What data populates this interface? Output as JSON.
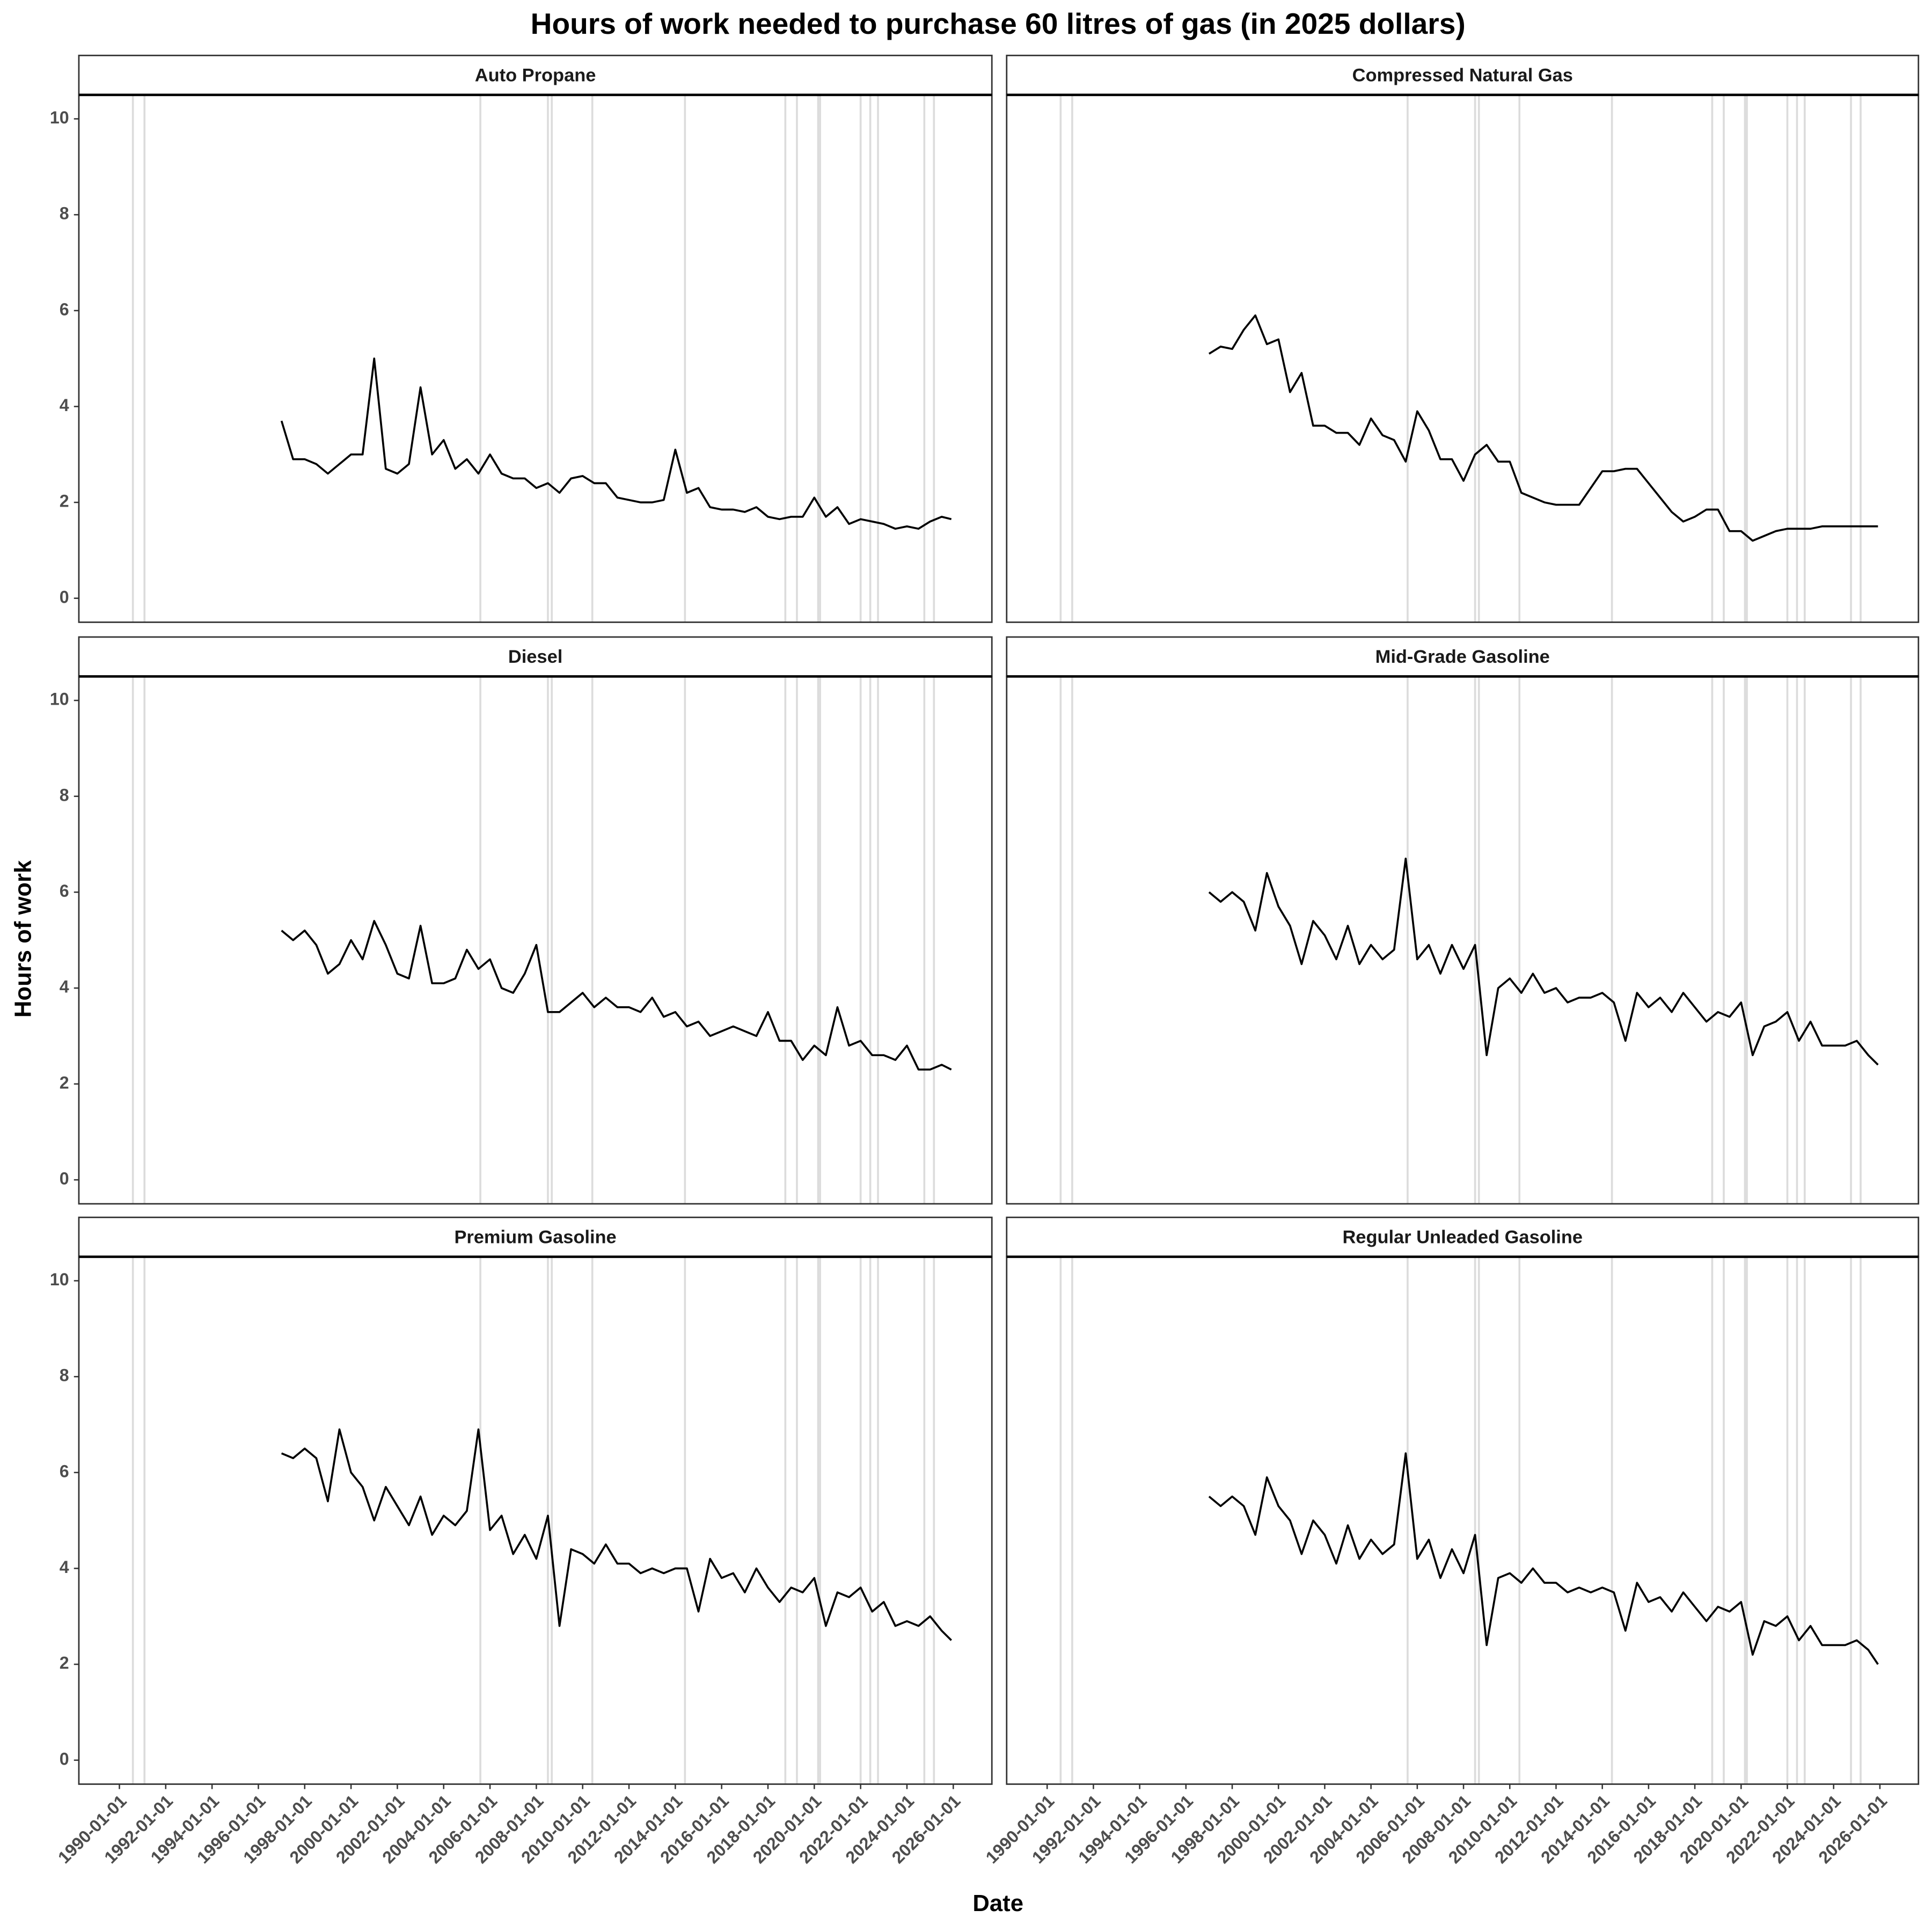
{
  "title": "Hours of work needed to purchase 60 litres of gas (in 2025 dollars)",
  "x_label": "Date",
  "y_label": "Hours of work",
  "reference_lines": [
    "1990-08-01",
    "1991-02-01",
    "2005-08-01",
    "2008-07-01",
    "2008-09-01",
    "2010-06-01",
    "2014-06-01",
    "2018-10-01",
    "2019-04-01",
    "2020-03-01",
    "2020-04-01",
    "2022-01-01",
    "2022-06-01",
    "2022-10-01",
    "2024-10-01",
    "2025-03-01"
  ],
  "chart_data": [
    {
      "type": "line",
      "title": "Auto Propane",
      "color": "#000000",
      "xlim": [
        "1988-04-01",
        "2027-09-01"
      ],
      "ylim": [
        -0.5,
        10.5
      ],
      "yticks": [
        0,
        2,
        4,
        6,
        8,
        10
      ],
      "x": [
        "1997-01-01",
        "1997-07-01",
        "1998-01-01",
        "1998-07-01",
        "1999-01-01",
        "1999-07-01",
        "2000-01-01",
        "2000-07-01",
        "2001-01-01",
        "2001-07-01",
        "2002-01-01",
        "2002-07-01",
        "2003-01-01",
        "2003-07-01",
        "2004-01-01",
        "2004-07-01",
        "2005-01-01",
        "2005-07-01",
        "2006-01-01",
        "2006-07-01",
        "2007-01-01",
        "2007-07-01",
        "2008-01-01",
        "2008-07-01",
        "2009-01-01",
        "2009-07-01",
        "2010-01-01",
        "2010-07-01",
        "2011-01-01",
        "2011-07-01",
        "2012-01-01",
        "2012-07-01",
        "2013-01-01",
        "2013-07-01",
        "2014-01-01",
        "2014-07-01",
        "2015-01-01",
        "2015-07-01",
        "2016-01-01",
        "2016-07-01",
        "2017-01-01",
        "2017-07-01",
        "2018-01-01",
        "2018-07-01",
        "2019-01-01",
        "2019-07-01",
        "2020-01-01",
        "2020-07-01",
        "2021-01-01",
        "2021-07-01",
        "2022-01-01",
        "2022-07-01",
        "2023-01-01",
        "2023-07-01",
        "2024-01-01",
        "2024-07-01",
        "2025-01-01",
        "2025-07-01",
        "2025-12-01"
      ],
      "values": [
        3.7,
        2.9,
        2.9,
        2.8,
        2.6,
        2.8,
        3.0,
        3.0,
        5.0,
        2.7,
        2.6,
        2.8,
        4.4,
        3.0,
        3.3,
        2.7,
        2.9,
        2.6,
        3.0,
        2.6,
        2.5,
        2.5,
        2.3,
        2.4,
        2.2,
        2.5,
        2.55,
        2.4,
        2.4,
        2.1,
        2.05,
        2.0,
        2.0,
        2.05,
        3.1,
        2.2,
        2.3,
        1.9,
        1.85,
        1.85,
        1.8,
        1.9,
        1.7,
        1.65,
        1.7,
        1.7,
        2.1,
        1.7,
        1.9,
        1.55,
        1.65,
        1.6,
        1.55,
        1.45,
        1.5,
        1.45,
        1.6,
        1.7,
        1.65
      ]
    },
    {
      "type": "line",
      "title": "Compressed Natural Gas",
      "color": "#000000",
      "xlim": [
        "1988-04-01",
        "2027-09-01"
      ],
      "ylim": [
        -0.5,
        10.5
      ],
      "x": [
        "1997-01-01",
        "1997-07-01",
        "1998-01-01",
        "1998-07-01",
        "1999-01-01",
        "1999-07-01",
        "2000-01-01",
        "2000-07-01",
        "2001-01-01",
        "2001-07-01",
        "2002-01-01",
        "2002-07-01",
        "2003-01-01",
        "2003-07-01",
        "2004-01-01",
        "2004-07-01",
        "2005-01-01",
        "2005-07-01",
        "2006-01-01",
        "2006-07-01",
        "2007-01-01",
        "2007-07-01",
        "2008-01-01",
        "2008-07-01",
        "2009-01-01",
        "2009-07-01",
        "2010-01-01",
        "2010-07-01",
        "2011-01-01",
        "2011-07-01",
        "2012-01-01",
        "2012-07-01",
        "2013-01-01",
        "2013-07-01",
        "2014-01-01",
        "2014-07-01",
        "2015-01-01",
        "2015-07-01",
        "2016-01-01",
        "2016-07-01",
        "2017-01-01",
        "2017-07-01",
        "2018-01-01",
        "2018-07-01",
        "2019-01-01",
        "2019-07-01",
        "2020-01-01",
        "2020-07-01",
        "2021-01-01",
        "2021-07-01",
        "2022-01-01",
        "2022-07-01",
        "2023-01-01",
        "2023-07-01",
        "2024-01-01",
        "2024-07-01",
        "2025-01-01",
        "2025-07-01",
        "2025-12-01"
      ],
      "values": [
        5.1,
        5.25,
        5.2,
        5.6,
        5.9,
        5.3,
        5.4,
        4.3,
        4.7,
        3.6,
        3.6,
        3.45,
        3.45,
        3.2,
        3.75,
        3.4,
        3.3,
        2.85,
        3.9,
        3.5,
        2.9,
        2.9,
        2.45,
        3.0,
        3.2,
        2.85,
        2.85,
        2.2,
        2.1,
        2.0,
        1.95,
        1.95,
        1.95,
        2.3,
        2.65,
        2.65,
        2.7,
        2.7,
        2.4,
        2.1,
        1.8,
        1.6,
        1.7,
        1.85,
        1.85,
        1.4,
        1.4,
        1.2,
        1.3,
        1.4,
        1.45,
        1.45,
        1.45,
        1.5,
        1.5,
        1.5,
        1.5,
        1.5,
        1.5
      ]
    },
    {
      "type": "line",
      "title": "Diesel",
      "color": "#000000",
      "xlim": [
        "1988-04-01",
        "2027-09-01"
      ],
      "ylim": [
        -0.5,
        10.5
      ],
      "yticks": [
        0,
        2,
        4,
        6,
        8,
        10
      ],
      "x": [
        "1997-01-01",
        "1997-07-01",
        "1998-01-01",
        "1998-07-01",
        "1999-01-01",
        "1999-07-01",
        "2000-01-01",
        "2000-07-01",
        "2001-01-01",
        "2001-07-01",
        "2002-01-01",
        "2002-07-01",
        "2003-01-01",
        "2003-07-01",
        "2004-01-01",
        "2004-07-01",
        "2005-01-01",
        "2005-07-01",
        "2006-01-01",
        "2006-07-01",
        "2007-01-01",
        "2007-07-01",
        "2008-01-01",
        "2008-07-01",
        "2009-01-01",
        "2009-07-01",
        "2010-01-01",
        "2010-07-01",
        "2011-01-01",
        "2011-07-01",
        "2012-01-01",
        "2012-07-01",
        "2013-01-01",
        "2013-07-01",
        "2014-01-01",
        "2014-07-01",
        "2015-01-01",
        "2015-07-01",
        "2016-01-01",
        "2016-07-01",
        "2017-01-01",
        "2017-07-01",
        "2018-01-01",
        "2018-07-01",
        "2019-01-01",
        "2019-07-01",
        "2020-01-01",
        "2020-07-01",
        "2021-01-01",
        "2021-07-01",
        "2022-01-01",
        "2022-07-01",
        "2023-01-01",
        "2023-07-01",
        "2024-01-01",
        "2024-07-01",
        "2025-01-01",
        "2025-07-01",
        "2025-12-01"
      ],
      "values": [
        5.2,
        5.0,
        5.2,
        4.9,
        4.3,
        4.5,
        5.0,
        4.6,
        5.4,
        4.9,
        4.3,
        4.2,
        5.3,
        4.1,
        4.1,
        4.2,
        4.8,
        4.4,
        4.6,
        4.0,
        3.9,
        4.3,
        4.9,
        3.5,
        3.5,
        3.7,
        3.9,
        3.6,
        3.8,
        3.6,
        3.6,
        3.5,
        3.8,
        3.4,
        3.5,
        3.2,
        3.3,
        3.0,
        3.1,
        3.2,
        3.1,
        3.0,
        3.5,
        2.9,
        2.9,
        2.5,
        2.8,
        2.6,
        3.6,
        2.8,
        2.9,
        2.6,
        2.6,
        2.5,
        2.8,
        2.3,
        2.3,
        2.4,
        2.3
      ]
    },
    {
      "type": "line",
      "title": "Mid-Grade Gasoline",
      "color": "#000000",
      "xlim": [
        "1988-04-01",
        "2027-09-01"
      ],
      "ylim": [
        -0.5,
        10.5
      ],
      "x": [
        "1997-01-01",
        "1997-07-01",
        "1998-01-01",
        "1998-07-01",
        "1999-01-01",
        "1999-07-01",
        "2000-01-01",
        "2000-07-01",
        "2001-01-01",
        "2001-07-01",
        "2002-01-01",
        "2002-07-01",
        "2003-01-01",
        "2003-07-01",
        "2004-01-01",
        "2004-07-01",
        "2005-01-01",
        "2005-07-01",
        "2006-01-01",
        "2006-07-01",
        "2007-01-01",
        "2007-07-01",
        "2008-01-01",
        "2008-07-01",
        "2009-01-01",
        "2009-07-01",
        "2010-01-01",
        "2010-07-01",
        "2011-01-01",
        "2011-07-01",
        "2012-01-01",
        "2012-07-01",
        "2013-01-01",
        "2013-07-01",
        "2014-01-01",
        "2014-07-01",
        "2015-01-01",
        "2015-07-01",
        "2016-01-01",
        "2016-07-01",
        "2017-01-01",
        "2017-07-01",
        "2018-01-01",
        "2018-07-01",
        "2019-01-01",
        "2019-07-01",
        "2020-01-01",
        "2020-07-01",
        "2021-01-01",
        "2021-07-01",
        "2022-01-01",
        "2022-07-01",
        "2023-01-01",
        "2023-07-01",
        "2024-01-01",
        "2024-07-01",
        "2025-01-01",
        "2025-07-01",
        "2025-12-01"
      ],
      "values": [
        6.0,
        5.8,
        6.0,
        5.8,
        5.2,
        6.4,
        5.7,
        5.3,
        4.5,
        5.4,
        5.1,
        4.6,
        5.3,
        4.5,
        4.9,
        4.6,
        4.8,
        6.7,
        4.6,
        4.9,
        4.3,
        4.9,
        4.4,
        4.9,
        2.6,
        4.0,
        4.2,
        3.9,
        4.3,
        3.9,
        4.0,
        3.7,
        3.8,
        3.8,
        3.9,
        3.7,
        2.9,
        3.9,
        3.6,
        3.8,
        3.5,
        3.9,
        3.6,
        3.3,
        3.5,
        3.4,
        3.7,
        2.6,
        3.2,
        3.3,
        3.5,
        2.9,
        3.3,
        2.8,
        2.8,
        2.8,
        2.9,
        2.6,
        2.4
      ]
    },
    {
      "type": "line",
      "title": "Premium Gasoline",
      "color": "#000000",
      "xlim": [
        "1988-04-01",
        "2027-09-01"
      ],
      "ylim": [
        -0.5,
        10.5
      ],
      "yticks": [
        0,
        2,
        4,
        6,
        8,
        10
      ],
      "xticks": [
        "1990-01-01",
        "1992-01-01",
        "1994-01-01",
        "1996-01-01",
        "1998-01-01",
        "2000-01-01",
        "2002-01-01",
        "2004-01-01",
        "2006-01-01",
        "2008-01-01",
        "2010-01-01",
        "2012-01-01",
        "2014-01-01",
        "2016-01-01",
        "2018-01-01",
        "2020-01-01",
        "2022-01-01",
        "2024-01-01",
        "2026-01-01"
      ],
      "x": [
        "1997-01-01",
        "1997-07-01",
        "1998-01-01",
        "1998-07-01",
        "1999-01-01",
        "1999-07-01",
        "2000-01-01",
        "2000-07-01",
        "2001-01-01",
        "2001-07-01",
        "2002-01-01",
        "2002-07-01",
        "2003-01-01",
        "2003-07-01",
        "2004-01-01",
        "2004-07-01",
        "2005-01-01",
        "2005-07-01",
        "2006-01-01",
        "2006-07-01",
        "2007-01-01",
        "2007-07-01",
        "2008-01-01",
        "2008-07-01",
        "2009-01-01",
        "2009-07-01",
        "2010-01-01",
        "2010-07-01",
        "2011-01-01",
        "2011-07-01",
        "2012-01-01",
        "2012-07-01",
        "2013-01-01",
        "2013-07-01",
        "2014-01-01",
        "2014-07-01",
        "2015-01-01",
        "2015-07-01",
        "2016-01-01",
        "2016-07-01",
        "2017-01-01",
        "2017-07-01",
        "2018-01-01",
        "2018-07-01",
        "2019-01-01",
        "2019-07-01",
        "2020-01-01",
        "2020-07-01",
        "2021-01-01",
        "2021-07-01",
        "2022-01-01",
        "2022-07-01",
        "2023-01-01",
        "2023-07-01",
        "2024-01-01",
        "2024-07-01",
        "2025-01-01",
        "2025-07-01",
        "2025-12-01"
      ],
      "values": [
        6.4,
        6.3,
        6.5,
        6.3,
        5.4,
        6.9,
        6.0,
        5.7,
        5.0,
        5.7,
        5.3,
        4.9,
        5.5,
        4.7,
        5.1,
        4.9,
        5.2,
        6.9,
        4.8,
        5.1,
        4.3,
        4.7,
        4.2,
        5.1,
        2.8,
        4.4,
        4.3,
        4.1,
        4.5,
        4.1,
        4.1,
        3.9,
        4.0,
        3.9,
        4.0,
        4.0,
        3.1,
        4.2,
        3.8,
        3.9,
        3.5,
        4.0,
        3.6,
        3.3,
        3.6,
        3.5,
        3.8,
        2.8,
        3.5,
        3.4,
        3.6,
        3.1,
        3.3,
        2.8,
        2.9,
        2.8,
        3.0,
        2.7,
        2.5
      ]
    },
    {
      "type": "line",
      "title": "Regular Unleaded Gasoline",
      "color": "#000000",
      "xlim": [
        "1988-04-01",
        "2027-09-01"
      ],
      "ylim": [
        -0.5,
        10.5
      ],
      "xticks": [
        "1990-01-01",
        "1992-01-01",
        "1994-01-01",
        "1996-01-01",
        "1998-01-01",
        "2000-01-01",
        "2002-01-01",
        "2004-01-01",
        "2006-01-01",
        "2008-01-01",
        "2010-01-01",
        "2012-01-01",
        "2014-01-01",
        "2016-01-01",
        "2018-01-01",
        "2020-01-01",
        "2022-01-01",
        "2024-01-01",
        "2026-01-01"
      ],
      "x": [
        "1997-01-01",
        "1997-07-01",
        "1998-01-01",
        "1998-07-01",
        "1999-01-01",
        "1999-07-01",
        "2000-01-01",
        "2000-07-01",
        "2001-01-01",
        "2001-07-01",
        "2002-01-01",
        "2002-07-01",
        "2003-01-01",
        "2003-07-01",
        "2004-01-01",
        "2004-07-01",
        "2005-01-01",
        "2005-07-01",
        "2006-01-01",
        "2006-07-01",
        "2007-01-01",
        "2007-07-01",
        "2008-01-01",
        "2008-07-01",
        "2009-01-01",
        "2009-07-01",
        "2010-01-01",
        "2010-07-01",
        "2011-01-01",
        "2011-07-01",
        "2012-01-01",
        "2012-07-01",
        "2013-01-01",
        "2013-07-01",
        "2014-01-01",
        "2014-07-01",
        "2015-01-01",
        "2015-07-01",
        "2016-01-01",
        "2016-07-01",
        "2017-01-01",
        "2017-07-01",
        "2018-01-01",
        "2018-07-01",
        "2019-01-01",
        "2019-07-01",
        "2020-01-01",
        "2020-07-01",
        "2021-01-01",
        "2021-07-01",
        "2022-01-01",
        "2022-07-01",
        "2023-01-01",
        "2023-07-01",
        "2024-01-01",
        "2024-07-01",
        "2025-01-01",
        "2025-07-01",
        "2025-12-01"
      ],
      "values": [
        5.5,
        5.3,
        5.5,
        5.3,
        4.7,
        5.9,
        5.3,
        5.0,
        4.3,
        5.0,
        4.7,
        4.1,
        4.9,
        4.2,
        4.6,
        4.3,
        4.5,
        6.4,
        4.2,
        4.6,
        3.8,
        4.4,
        3.9,
        4.7,
        2.4,
        3.8,
        3.9,
        3.7,
        4.0,
        3.7,
        3.7,
        3.5,
        3.6,
        3.5,
        3.6,
        3.5,
        2.7,
        3.7,
        3.3,
        3.4,
        3.1,
        3.5,
        3.2,
        2.9,
        3.2,
        3.1,
        3.3,
        2.2,
        2.9,
        2.8,
        3.0,
        2.5,
        2.8,
        2.4,
        2.4,
        2.4,
        2.5,
        2.3,
        2.0
      ]
    }
  ]
}
